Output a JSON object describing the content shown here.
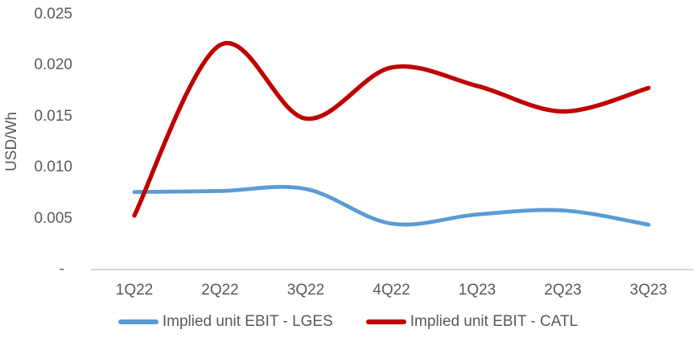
{
  "chart_data": {
    "type": "line",
    "title": "",
    "xlabel": "",
    "ylabel": "USD/Wh",
    "categories": [
      "1Q22",
      "2Q22",
      "3Q22",
      "4Q22",
      "1Q23",
      "2Q23",
      "3Q23"
    ],
    "series": [
      {
        "name": "Implied unit EBIT - LGES",
        "slug": "lges",
        "color": "#5B9BD5",
        "values": [
          0.0076,
          0.0077,
          0.0079,
          0.0045,
          0.0054,
          0.0058,
          0.0044
        ]
      },
      {
        "name": "Implied unit EBIT - CATL",
        "slug": "catl",
        "color": "#C00000",
        "values": [
          0.0053,
          0.022,
          0.0148,
          0.0198,
          0.018,
          0.0155,
          0.0178
        ]
      }
    ],
    "ylim": [
      0,
      0.025
    ],
    "ytick_interval": 0.005,
    "ytick_labels": [
      "-",
      "0.005",
      "0.010",
      "0.015",
      "0.020",
      "0.025"
    ],
    "grid": false,
    "smooth_lines": true,
    "legend_position": "bottom"
  },
  "style": {
    "text_color": "#595959",
    "axis_line_color": "#D9D9D9",
    "background": "#FFFFFF"
  }
}
